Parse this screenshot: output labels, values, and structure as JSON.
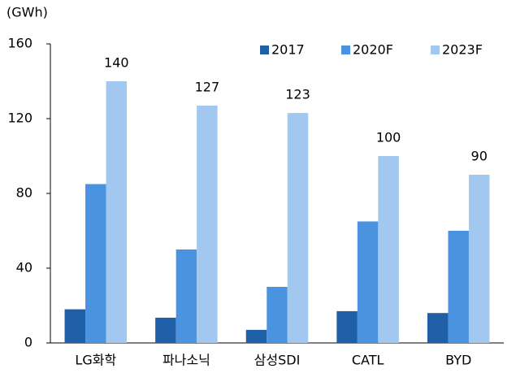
{
  "chart_data": {
    "type": "bar",
    "ylabel": "(GWh)",
    "categories": [
      "LG화학",
      "파나소닉",
      "삼성SDI",
      "CATL",
      "BYD"
    ],
    "series": [
      {
        "name": "2017",
        "color": "#1f5fa8",
        "values": [
          18,
          13.5,
          7,
          17,
          16
        ]
      },
      {
        "name": "2020F",
        "color": "#4a93e0",
        "values": [
          85,
          50,
          30,
          65,
          60
        ]
      },
      {
        "name": "2023F",
        "color": "#a3c8f0",
        "values": [
          140,
          127,
          123,
          100,
          90
        ],
        "show_labels": true
      }
    ],
    "ylim": [
      0,
      160
    ],
    "yticks": [
      0,
      40,
      80,
      120,
      160
    ],
    "grid": false,
    "legend": "top"
  }
}
